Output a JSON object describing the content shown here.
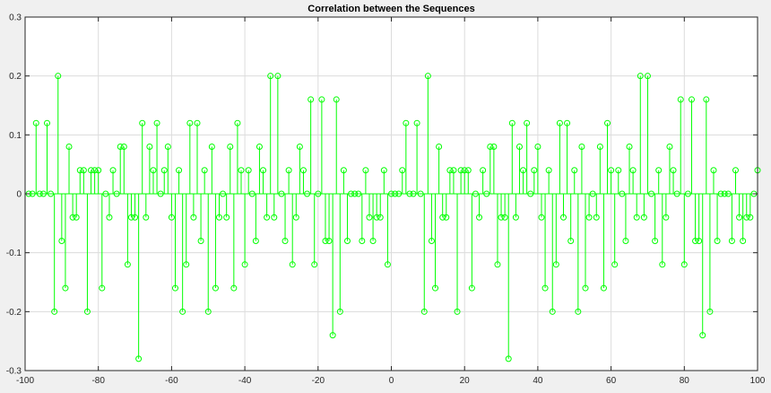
{
  "chart_data": {
    "type": "stem",
    "title": "Correlation between the Sequences",
    "xlabel": "",
    "ylabel": "",
    "xlim": [
      -100,
      100
    ],
    "ylim": [
      -0.3,
      0.3
    ],
    "grid": true,
    "xticks": [
      -100,
      -80,
      -60,
      -40,
      -20,
      0,
      20,
      40,
      60,
      80,
      100
    ],
    "yticks": [
      -0.3,
      -0.2,
      -0.1,
      0,
      0.1,
      0.2,
      0.3
    ],
    "xtick_labels": [
      "-100",
      "-80",
      "-60",
      "-40",
      "-20",
      "0",
      "20",
      "40",
      "60",
      "80",
      "100"
    ],
    "ytick_labels": [
      "-0.3",
      "-0.2",
      "-0.1",
      "0",
      "0.1",
      "0.2",
      "0.3"
    ],
    "color": "#00ff00",
    "series": [
      {
        "x_start": -99,
        "values": [
          0,
          0,
          0.12,
          0,
          0,
          0.12,
          0,
          -0.2,
          0.2,
          -0.08,
          -0.16,
          0.08,
          -0.04,
          -0.04,
          0.04,
          0.04,
          -0.2,
          0.04,
          0.04,
          0.04,
          -0.16,
          0,
          -0.04,
          0.04,
          0,
          0.08,
          0.08,
          -0.12,
          -0.04,
          -0.04,
          -0.28,
          0.12,
          -0.04,
          0.08,
          0.04,
          0.12,
          0,
          0.04,
          0.08,
          -0.04,
          -0.16,
          0.04,
          -0.2,
          -0.12,
          0.12,
          -0.04,
          0.12,
          -0.08,
          0.04,
          -0.2,
          0.08,
          -0.16,
          -0.04,
          0,
          -0.04,
          0.08,
          -0.16,
          0.12,
          0.04,
          -0.12,
          0.04,
          0,
          -0.08,
          0.08,
          0.04,
          -0.04,
          0.2,
          -0.04,
          0.2,
          0,
          -0.08,
          0.04,
          -0.12,
          -0.04,
          0.08,
          0.04,
          0,
          0.16,
          -0.12,
          0,
          0.16,
          -0.08,
          -0.08,
          -0.24,
          0.16,
          -0.2,
          0.04,
          -0.08,
          0,
          0,
          0,
          -0.08,
          0.04,
          -0.04,
          -0.08,
          -0.04,
          -0.04,
          0.04,
          -0.12,
          0,
          0,
          0,
          0.04,
          0.12,
          0,
          0,
          0.12,
          0,
          -0.2,
          0.2,
          -0.08,
          -0.16,
          0.08,
          -0.04,
          -0.04,
          0.04,
          0.04,
          -0.2,
          0.04,
          0.04,
          0.04,
          -0.16,
          0,
          -0.04,
          0.04,
          0,
          0.08,
          0.08,
          -0.12,
          -0.04,
          -0.04,
          -0.28,
          0.12,
          -0.04,
          0.08,
          0.04,
          0.12,
          0,
          0.04,
          0.08,
          -0.04,
          -0.16,
          0.04,
          -0.2,
          -0.12,
          0.12,
          -0.04,
          0.12,
          -0.08,
          0.04,
          -0.2,
          0.08,
          -0.16,
          -0.04,
          0,
          -0.04,
          0.08,
          -0.16,
          0.12,
          0.04,
          -0.12,
          0.04,
          0,
          -0.08,
          0.08,
          0.04,
          -0.04,
          0.2,
          -0.04,
          0.2,
          0,
          -0.08,
          0.04,
          -0.12,
          -0.04,
          0.08,
          0.04,
          0,
          0.16,
          -0.12,
          0,
          0.16,
          -0.08,
          -0.08,
          -0.24,
          0.16,
          -0.2,
          0.04,
          -0.08,
          0,
          0,
          0,
          -0.08,
          0.04,
          -0.04,
          -0.08,
          -0.04,
          -0.04,
          0,
          0.04
        ]
      }
    ]
  }
}
